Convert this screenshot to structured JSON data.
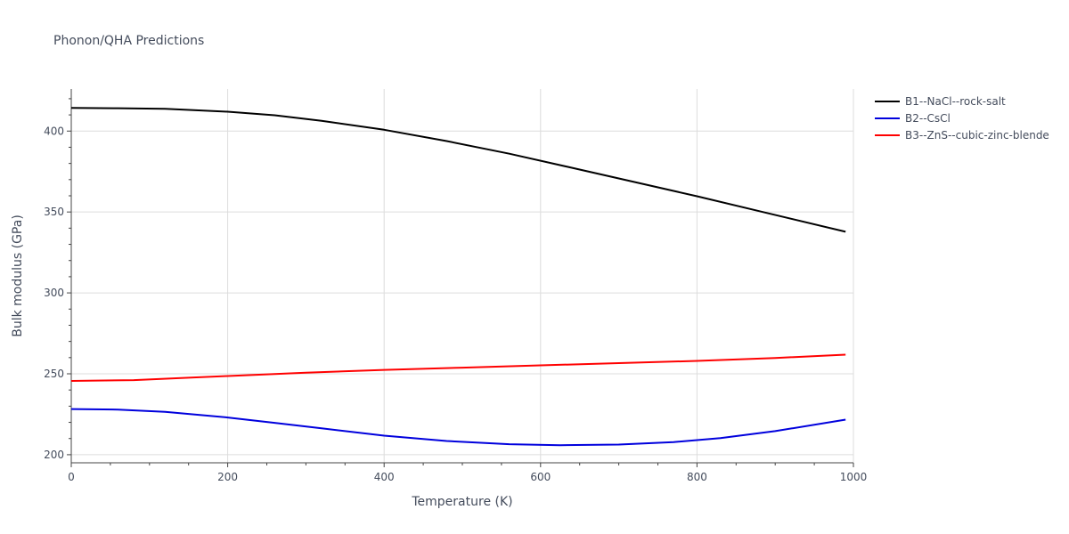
{
  "chart_data": {
    "type": "line",
    "title": "Phonon/QHA Predictions",
    "xlabel": "Temperature (K)",
    "ylabel": "Bulk modulus (GPa)",
    "xlim": [
      0,
      1000
    ],
    "ylim": [
      195,
      426
    ],
    "xticks": [
      0,
      200,
      400,
      600,
      800,
      1000
    ],
    "xtick_labels": [
      "0",
      "200",
      "400",
      "600",
      "800",
      "1000"
    ],
    "yticks": [
      200,
      250,
      300,
      350,
      400
    ],
    "ytick_labels": [
      "200",
      "250",
      "300",
      "350",
      "400"
    ],
    "grid": true,
    "legend_position": "top-right",
    "series": [
      {
        "name": "B1--NaCl--rock-salt",
        "color": "#000000",
        "x": [
          0,
          60,
          120,
          200,
          260,
          320,
          400,
          480,
          560,
          640,
          720,
          800,
          880,
          990
        ],
        "y": [
          414.3,
          414.1,
          413.8,
          412.0,
          409.8,
          406.3,
          400.8,
          393.8,
          386.0,
          377.3,
          368.5,
          359.7,
          350.5,
          337.8
        ]
      },
      {
        "name": "B2--CsCl",
        "color": "#0000dd",
        "x": [
          0,
          60,
          120,
          200,
          260,
          320,
          400,
          480,
          560,
          625,
          700,
          770,
          830,
          900,
          990
        ],
        "y": [
          228.2,
          227.9,
          226.5,
          223.0,
          219.7,
          216.3,
          211.8,
          208.5,
          206.5,
          205.9,
          206.3,
          207.8,
          210.3,
          214.6,
          221.7
        ]
      },
      {
        "name": "B3--ZnS--cubic-zinc-blende",
        "color": "#ff0000",
        "x": [
          0,
          80,
          150,
          200,
          300,
          400,
          500,
          600,
          700,
          800,
          900,
          990
        ],
        "y": [
          245.6,
          246.1,
          247.6,
          248.6,
          250.7,
          252.4,
          253.8,
          255.2,
          256.6,
          258.0,
          259.8,
          261.8
        ]
      }
    ]
  }
}
